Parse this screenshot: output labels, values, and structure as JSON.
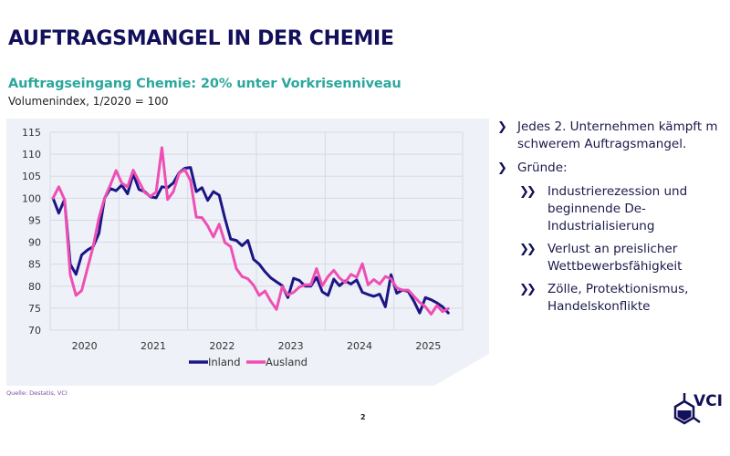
{
  "slide": {
    "title": "AUFTRAGSMANGEL IN DER CHEMIE",
    "subtitle": "Auftragseingang Chemie: 20% unter Vorkrisenniveau",
    "unit_note": "Volumenindex, 1/2020 = 100",
    "source": "Quelle: Destatis, VCI",
    "page_number": "2",
    "logo_text": "VCI"
  },
  "bullets": [
    {
      "level": 1,
      "text_lines": [
        "Jedes 2. Unternehmen kämpft m",
        "schwerem Auftragsmangel."
      ]
    },
    {
      "level": 1,
      "text_lines": [
        "Gründe:"
      ]
    },
    {
      "level": 2,
      "text_lines": [
        "Industrierezession und",
        "beginnende De-",
        "Industrialisierung"
      ]
    },
    {
      "level": 2,
      "text_lines": [
        "Verlust an preislicher",
        "Wettbewerbsfähigkeit"
      ]
    },
    {
      "level": 2,
      "text_lines": [
        "Zölle, Protektionismus,",
        "Handelskonflikte"
      ]
    }
  ],
  "markers": {
    "level1": "❯",
    "level2": "❯❯"
  },
  "chart_data": {
    "type": "line",
    "title": "Auftragseingang Chemie: 20% unter Vorkrisenniveau",
    "subtitle": "Volumenindex, 1/2020 = 100",
    "xlabel": "",
    "ylabel": "",
    "x_start": "2020-01",
    "x_frequency": "monthly",
    "x_tick_labels": [
      "2020",
      "2021",
      "2022",
      "2023",
      "2024",
      "2025"
    ],
    "y_ticks": [
      70,
      75,
      80,
      85,
      90,
      95,
      100,
      105,
      110,
      115
    ],
    "ylim": [
      70,
      115
    ],
    "grid": true,
    "legend_position": "bottom-center",
    "series": [
      {
        "name": "Inland",
        "color": "#1b1585",
        "values": [
          100,
          96.6,
          99.7,
          85,
          82.7,
          87.1,
          88.2,
          89,
          92,
          100,
          102.2,
          101.7,
          103,
          101,
          105.5,
          102,
          101.5,
          100.3,
          100.1,
          102.6,
          102.4,
          103.5,
          105.8,
          106.8,
          107,
          101.5,
          102.4,
          99.5,
          101.5,
          100.7,
          95.4,
          90.7,
          90.4,
          89.2,
          90.4,
          86.1,
          85,
          83.3,
          81.9,
          81,
          80.1,
          77.4,
          81.8,
          81.3,
          80,
          80,
          82,
          78.7,
          77.9,
          81.6,
          80.1,
          81.2,
          80.5,
          81.4,
          78.6,
          78.1,
          77.7,
          78.2,
          75.3,
          82.6,
          78.4,
          79.1,
          78.8,
          76.6,
          73.9,
          77.4,
          76.9,
          76.2,
          75.3,
          73.9
        ]
      },
      {
        "name": "Ausland",
        "color": "#ee4fb4",
        "values": [
          100,
          102.6,
          99.7,
          82.6,
          77.9,
          79,
          84,
          89,
          95.5,
          100,
          103,
          106.3,
          103.4,
          102.6,
          106.4,
          103.8,
          101.3,
          100.4,
          101.4,
          111.5,
          99.7,
          101.5,
          105.7,
          106.5,
          104,
          95.7,
          95.6,
          93.7,
          91.2,
          94.1,
          89.9,
          89,
          84,
          82.2,
          81.7,
          80.2,
          77.9,
          78.9,
          76.6,
          74.7,
          79.9,
          78,
          78.6,
          79.8,
          80.3,
          80.3,
          84,
          80.1,
          82.2,
          83.6,
          81.9,
          80.8,
          82.7,
          82,
          85.1,
          80.3,
          81.5,
          80.5,
          82.2,
          81.7,
          79.6,
          79.1,
          79.1,
          77.7,
          76.3,
          75.3,
          73.6,
          75.6,
          74.2,
          74.9
        ]
      }
    ]
  }
}
